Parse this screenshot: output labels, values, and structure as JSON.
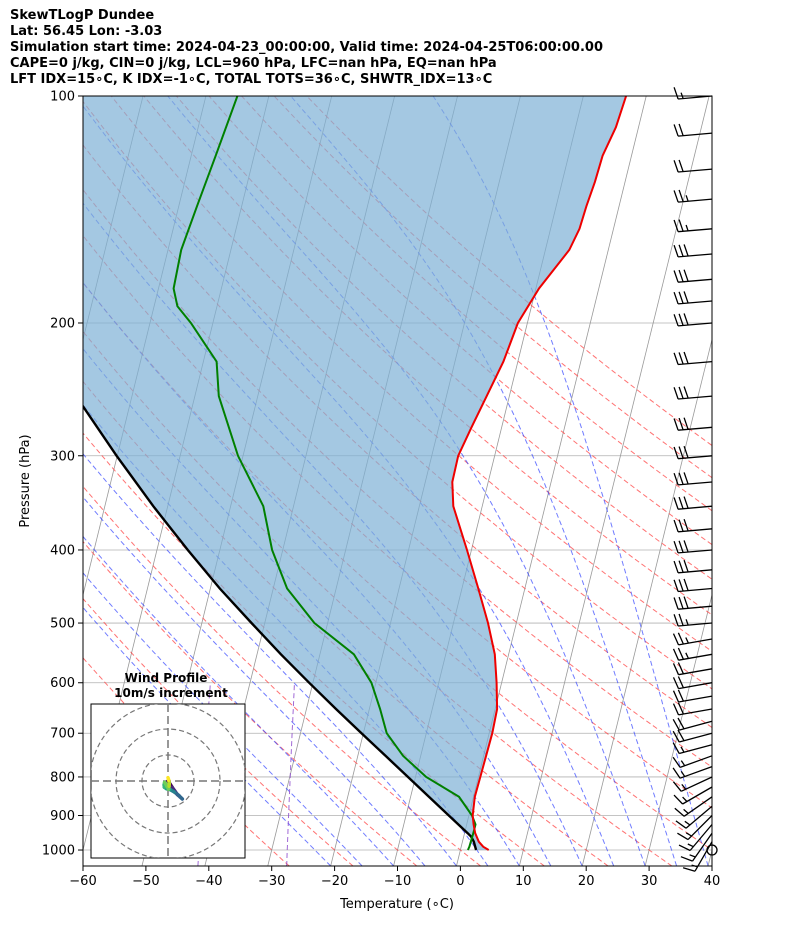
{
  "header": {
    "line1": "SkewTLogP Dundee",
    "line2": "Lat: 56.45   Lon: -3.03",
    "line3": "Simulation start time: 2024-04-23_00:00:00, Valid time: 2024-04-25T06:00:00.00",
    "line4": "CAPE=0 j/kg, CIN=0 j/kg, LCL=960 hPa, LFC=nan hPa, EQ=nan hPa",
    "line5": "LFT IDX=15∘C, K IDX=-1∘C, TOTAL TOTS=36∘C, SHWTR_IDX=13∘C"
  },
  "colors": {
    "temperature": "#ee0000",
    "dewpoint": "#008000",
    "parcel": "#000000",
    "cape_fill": "#7eb0d5",
    "dry_adiabat": "#ff4444",
    "moist_adiabat": "#3344ff",
    "mixing_ratio": "#8844cc",
    "isotherm": "#999999"
  },
  "chart_data": [
    {
      "type": "line",
      "subtype": "skew-T log-P diagram",
      "xlabel": "Temperature (∘C)",
      "ylabel": "Pressure (hPa)",
      "xlim": [
        -60,
        40
      ],
      "ylim": [
        1050,
        100
      ],
      "y_scale": "log",
      "x_ticks": [
        "−60",
        "−50",
        "−40",
        "−30",
        "−20",
        "−10",
        "0",
        "10",
        "20",
        "30",
        "40"
      ],
      "y_ticks": [
        "100",
        "200",
        "300",
        "400",
        "500",
        "600",
        "700",
        "800",
        "900",
        "1000"
      ],
      "grid": true,
      "series": [
        {
          "key": "temperature",
          "points": [
            [
              1000,
              4.5
            ],
            [
              990,
              3.5
            ],
            [
              975,
              2.6
            ],
            [
              950,
              1.7
            ],
            [
              925,
              1.1
            ],
            [
              900,
              0.6
            ],
            [
              850,
              0.2
            ],
            [
              800,
              0.3
            ],
            [
              750,
              0.4
            ],
            [
              700,
              0.5
            ],
            [
              650,
              0.3
            ],
            [
              600,
              -0.8
            ],
            [
              550,
              -2.2
            ],
            [
              500,
              -4.5
            ],
            [
              450,
              -7.4
            ],
            [
              400,
              -10.7
            ],
            [
              350,
              -14.6
            ],
            [
              325,
              -15.7
            ],
            [
              300,
              -15.8
            ],
            [
              275,
              -14.8
            ],
            [
              250,
              -13.6
            ],
            [
              225,
              -12.3
            ],
            [
              200,
              -11.5
            ],
            [
              180,
              -9.5
            ],
            [
              160,
              -6.2
            ],
            [
              150,
              -5.4
            ],
            [
              140,
              -5.2
            ],
            [
              130,
              -4.8
            ],
            [
              120,
              -4.6
            ],
            [
              110,
              -3.6
            ],
            [
              100,
              -3.2
            ]
          ]
        },
        {
          "key": "dewpoint",
          "points": [
            [
              1000,
              1.2
            ],
            [
              990,
              1.3
            ],
            [
              950,
              1.4
            ],
            [
              925,
              1.4
            ],
            [
              900,
              0.5
            ],
            [
              850,
              -2.3
            ],
            [
              800,
              -8.3
            ],
            [
              750,
              -12.8
            ],
            [
              700,
              -16.3
            ],
            [
              650,
              -18.3
            ],
            [
              600,
              -20.7
            ],
            [
              550,
              -24.6
            ],
            [
              500,
              -32.1
            ],
            [
              450,
              -37.8
            ],
            [
              400,
              -41.7
            ],
            [
              350,
              -44.8
            ],
            [
              300,
              -50.8
            ],
            [
              250,
              -56.2
            ],
            [
              225,
              -57.9
            ],
            [
              200,
              -63.5
            ],
            [
              190,
              -66.3
            ],
            [
              180,
              -67.6
            ],
            [
              160,
              -67.9
            ],
            [
              140,
              -67.1
            ],
            [
              120,
              -66.1
            ],
            [
              100,
              -65.0
            ]
          ]
        },
        {
          "key": "parcel",
          "points": [
            [
              1000,
              2.5
            ],
            [
              975,
              1.8
            ],
            [
              960,
              1.2
            ],
            [
              950,
              0.5
            ],
            [
              900,
              -3.2
            ],
            [
              850,
              -7.1
            ],
            [
              800,
              -11.2
            ],
            [
              750,
              -15.6
            ],
            [
              700,
              -20.3
            ],
            [
              650,
              -25.3
            ],
            [
              600,
              -30.6
            ],
            [
              550,
              -36.2
            ],
            [
              500,
              -42.1
            ],
            [
              450,
              -48.5
            ],
            [
              400,
              -55.1
            ],
            [
              350,
              -62.3
            ],
            [
              300,
              -70.1
            ],
            [
              250,
              -78.9
            ],
            [
              200,
              -88.6
            ],
            [
              150,
              -100.2
            ],
            [
              100,
              -115.9
            ]
          ]
        }
      ],
      "wind_barbs": {
        "pressure": [
          1000,
          975,
          950,
          925,
          900,
          875,
          850,
          825,
          800,
          775,
          750,
          725,
          700,
          675,
          650,
          625,
          600,
          575,
          550,
          525,
          500,
          475,
          450,
          425,
          400,
          375,
          350,
          325,
          300,
          275,
          250,
          225,
          200,
          187,
          175,
          162,
          150,
          137,
          125,
          112,
          100
        ],
        "speed_kt": [
          0,
          15,
          15,
          15,
          15,
          15,
          15,
          15,
          15,
          15,
          15,
          15,
          20,
          20,
          20,
          20,
          20,
          20,
          25,
          25,
          25,
          30,
          30,
          30,
          30,
          30,
          30,
          30,
          30,
          30,
          30,
          30,
          30,
          30,
          30,
          30,
          25,
          25,
          20,
          20,
          15
        ],
        "dir_deg": [
          0,
          210,
          215,
          220,
          225,
          230,
          235,
          240,
          245,
          250,
          250,
          255,
          255,
          255,
          260,
          260,
          260,
          260,
          260,
          260,
          265,
          265,
          265,
          265,
          265,
          265,
          265,
          265,
          265,
          265,
          265,
          265,
          265,
          265,
          265,
          265,
          265,
          265,
          265,
          265,
          265
        ]
      }
    },
    {
      "type": "scatter",
      "subtype": "hodograph",
      "title": "Wind Profile",
      "subtitle": "10m/s increment",
      "ring_increment": 10,
      "points_uv": [
        [
          0,
          0
        ],
        [
          0.8,
          -1.2
        ],
        [
          1.6,
          -2.4
        ],
        [
          2.6,
          -3.8
        ],
        [
          3.6,
          -5.2
        ],
        [
          4.7,
          -6.2
        ],
        [
          5.5,
          -6.9
        ],
        [
          4.2,
          -5.6
        ],
        [
          2.4,
          -4.2
        ],
        [
          0.8,
          -3.3
        ],
        [
          -0.5,
          -3.0
        ],
        [
          -1.4,
          -2.4
        ],
        [
          -1.5,
          -1.5
        ],
        [
          -1.3,
          -0.5
        ],
        [
          0.2,
          -3.1
        ],
        [
          0.4,
          -2.0
        ],
        [
          0.5,
          -1.0
        ],
        [
          0.3,
          0.3
        ],
        [
          0.0,
          1.3
        ]
      ]
    }
  ]
}
